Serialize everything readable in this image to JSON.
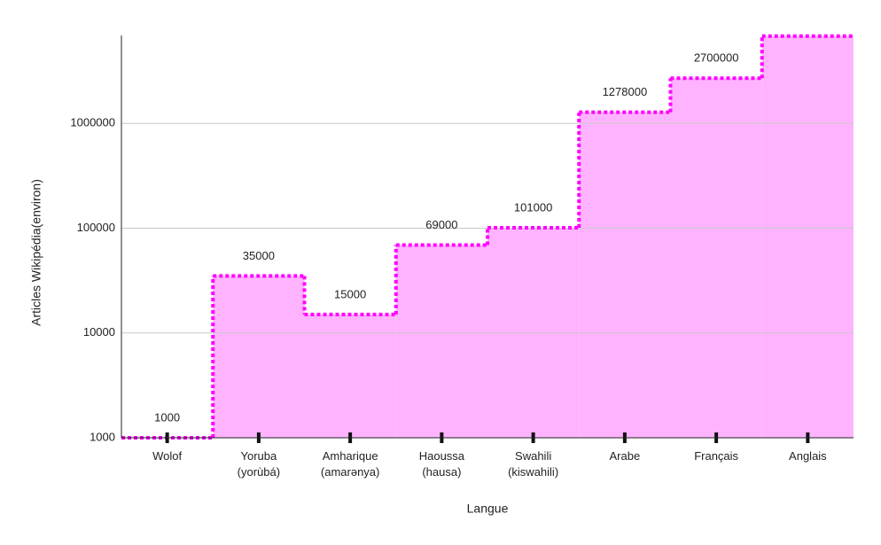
{
  "chart_data": {
    "type": "step-area",
    "categories": [
      [
        "Wolof"
      ],
      [
        "Yoruba",
        "(yorùbá)"
      ],
      [
        "Amharique",
        "(amarənya)"
      ],
      [
        "Haoussa",
        "(hausa)"
      ],
      [
        "Swahili",
        "(kiswahili)"
      ],
      [
        "Arabe"
      ],
      [
        "Français"
      ],
      [
        "Anglais"
      ]
    ],
    "values": [
      1000,
      35000,
      15000,
      69000,
      101000,
      1278000,
      2700000,
      6800000
    ],
    "x_label": "Langue",
    "y_label": "Articles Wikipédia(environ)",
    "ylim": [
      1000,
      6900000
    ],
    "yticks": [
      1000,
      10000,
      100000,
      1000000
    ],
    "log_scale": true,
    "grid": true,
    "line_color": "#ff00ff",
    "fill_color": "#ffb3ff"
  }
}
